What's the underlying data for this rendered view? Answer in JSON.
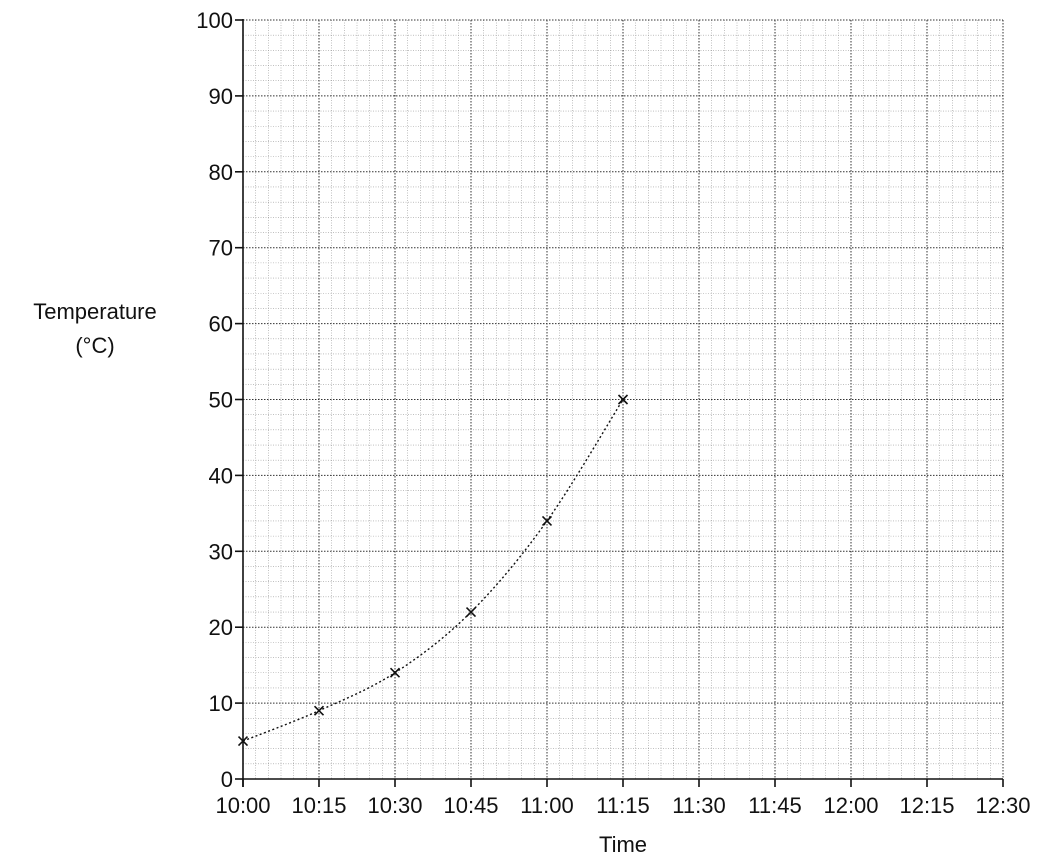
{
  "chart_data": {
    "type": "line",
    "title": "",
    "xlabel": "Time",
    "ylabel_lines": [
      "Temperature",
      "(°C)"
    ],
    "x_categories": [
      "10:00",
      "10:15",
      "10:30",
      "10:45",
      "11:00",
      "11:15",
      "11:30",
      "11:45",
      "12:00",
      "12:15",
      "12:30"
    ],
    "ylim": [
      0,
      100
    ],
    "y_ticks": [
      0,
      10,
      20,
      30,
      40,
      50,
      60,
      70,
      80,
      90,
      100
    ],
    "grid": true,
    "legend": "none",
    "series": [
      {
        "marker": "x",
        "line_style": "dotted",
        "points": [
          {
            "x": "10:00",
            "y": 5
          },
          {
            "x": "10:15",
            "y": 9
          },
          {
            "x": "10:30",
            "y": 14
          },
          {
            "x": "10:45",
            "y": 22
          },
          {
            "x": "11:00",
            "y": 34
          },
          {
            "x": "11:15",
            "y": 50
          }
        ]
      }
    ]
  }
}
